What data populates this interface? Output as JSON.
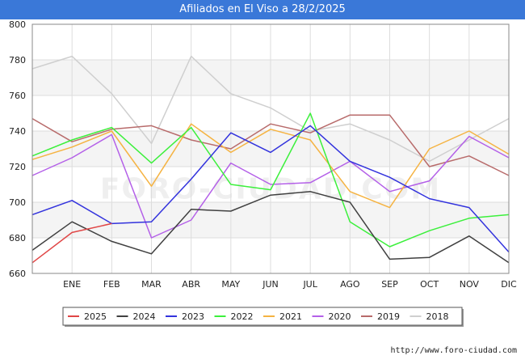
{
  "header": {
    "title": "Afiliados en El Viso a 28/2/2025"
  },
  "footer": {
    "source": "http://www.foro-ciudad.com"
  },
  "watermark": "FORO-CIUDAD.COM",
  "chart_data": {
    "type": "line",
    "title": "Afiliados en El Viso a 28/2/2025",
    "xlabel": "",
    "ylabel": "",
    "ylim": [
      660,
      800
    ],
    "yticks": [
      660,
      680,
      700,
      720,
      740,
      760,
      780,
      800
    ],
    "categories": [
      "",
      "ENE",
      "FEB",
      "MAR",
      "ABR",
      "MAY",
      "JUN",
      "JUL",
      "AGO",
      "SEP",
      "OCT",
      "NOV",
      "DIC"
    ],
    "grid": true,
    "legend_position": "bottom",
    "series": [
      {
        "name": "2018",
        "color": "#cfcfcf",
        "values": [
          775,
          782,
          761,
          733,
          782,
          761,
          753,
          740,
          744,
          735,
          723,
          735,
          747
        ]
      },
      {
        "name": "2019",
        "color": "#b86b6b",
        "values": [
          747,
          734,
          741,
          743,
          735,
          730,
          744,
          739,
          749,
          749,
          720,
          726,
          715
        ]
      },
      {
        "name": "2020",
        "color": "#b460e8",
        "values": [
          715,
          725,
          738,
          680,
          690,
          722,
          710,
          711,
          723,
          706,
          712,
          737,
          725
        ]
      },
      {
        "name": "2021",
        "color": "#f5b342",
        "values": [
          724,
          731,
          740,
          709,
          744,
          728,
          741,
          735,
          706,
          697,
          730,
          740,
          727
        ]
      },
      {
        "name": "2022",
        "color": "#3cf03c",
        "values": [
          726,
          735,
          742,
          722,
          742,
          710,
          707,
          750,
          689,
          675,
          684,
          691,
          693
        ]
      },
      {
        "name": "2023",
        "color": "#3333dd",
        "values": [
          693,
          701,
          688,
          689,
          713,
          739,
          728,
          743,
          723,
          714,
          702,
          697,
          672
        ]
      },
      {
        "name": "2024",
        "color": "#404040",
        "values": [
          673,
          689,
          678,
          671,
          696,
          695,
          704,
          706,
          700,
          668,
          669,
          681,
          666
        ]
      },
      {
        "name": "2025",
        "color": "#e04646",
        "values": [
          666,
          683,
          688,
          null,
          null,
          null,
          null,
          null,
          null,
          null,
          null,
          null,
          null
        ]
      }
    ],
    "legend_order": [
      "2025",
      "2024",
      "2023",
      "2022",
      "2021",
      "2020",
      "2019",
      "2018"
    ]
  }
}
